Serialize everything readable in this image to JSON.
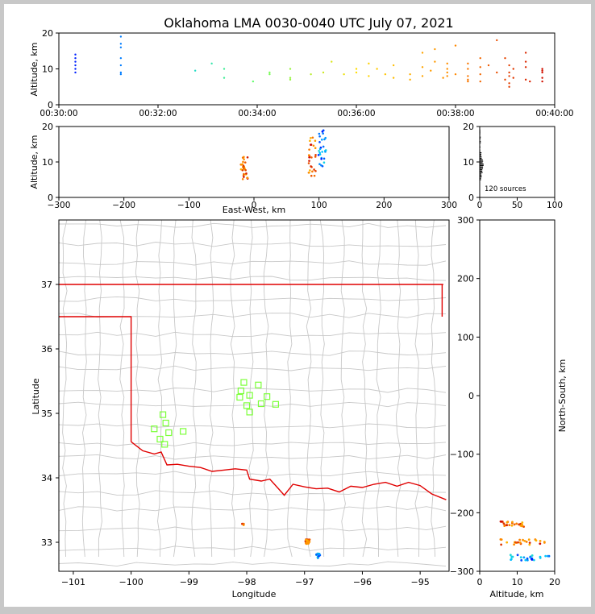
{
  "title": "Oklahoma LMA 0030-0040 UTC July 07, 2021",
  "colors": {
    "frame": "#c8c8c8",
    "background": "#ffffff",
    "county_lines": "#c8c8c8",
    "state_border": "#e00000",
    "stations": "#7cff3a",
    "colormap": [
      "#0000ff",
      "#00c8ff",
      "#66ff66",
      "#ffdd00",
      "#ff8800",
      "#cc0000"
    ]
  },
  "chart_data": [
    {
      "id": "time_altitude",
      "type": "scatter",
      "xlabel": "",
      "ylabel": "Altitude, km",
      "xlim": [
        "00:30:00",
        "00:40:00"
      ],
      "ylim": [
        0,
        20
      ],
      "xticks": [
        "00:30:00",
        "00:32:00",
        "00:34:00",
        "00:36:00",
        "00:38:00",
        "00:40:00"
      ],
      "yticks": [
        0,
        10,
        20
      ],
      "color_by": "time",
      "points": [
        [
          "00:30:20",
          9.0
        ],
        [
          "00:30:20",
          10.0
        ],
        [
          "00:30:20",
          11.0
        ],
        [
          "00:30:20",
          12.0
        ],
        [
          "00:30:20",
          13.0
        ],
        [
          "00:30:20",
          14.0
        ],
        [
          "00:31:15",
          8.5
        ],
        [
          "00:31:15",
          9.0
        ],
        [
          "00:31:15",
          11.0
        ],
        [
          "00:31:15",
          13.0
        ],
        [
          "00:31:15",
          16.0
        ],
        [
          "00:31:15",
          17.0
        ],
        [
          "00:31:15",
          19.0
        ],
        [
          "00:32:45",
          9.5
        ],
        [
          "00:33:05",
          11.5
        ],
        [
          "00:33:20",
          7.5
        ],
        [
          "00:33:20",
          10.0
        ],
        [
          "00:33:55",
          6.5
        ],
        [
          "00:34:15",
          8.5
        ],
        [
          "00:34:15",
          9.0
        ],
        [
          "00:34:40",
          7.0
        ],
        [
          "00:34:40",
          7.5
        ],
        [
          "00:34:40",
          10.0
        ],
        [
          "00:35:05",
          8.5
        ],
        [
          "00:35:20",
          9.0
        ],
        [
          "00:35:30",
          12.0
        ],
        [
          "00:35:45",
          8.5
        ],
        [
          "00:36:00",
          9.0
        ],
        [
          "00:36:00",
          10.0
        ],
        [
          "00:36:15",
          8.0
        ],
        [
          "00:36:15",
          11.5
        ],
        [
          "00:36:25",
          10.0
        ],
        [
          "00:36:35",
          8.5
        ],
        [
          "00:36:45",
          7.5
        ],
        [
          "00:36:45",
          11.0
        ],
        [
          "00:37:05",
          7.0
        ],
        [
          "00:37:05",
          8.5
        ],
        [
          "00:37:20",
          8.0
        ],
        [
          "00:37:20",
          10.5
        ],
        [
          "00:37:20",
          14.5
        ],
        [
          "00:37:30",
          9.5
        ],
        [
          "00:37:35",
          15.5
        ],
        [
          "00:37:35",
          12.0
        ],
        [
          "00:37:45",
          7.5
        ],
        [
          "00:37:50",
          8.0
        ],
        [
          "00:37:50",
          9.0
        ],
        [
          "00:37:50",
          10.0
        ],
        [
          "00:37:50",
          11.5
        ],
        [
          "00:38:00",
          8.5
        ],
        [
          "00:38:00",
          16.5
        ],
        [
          "00:38:15",
          6.5
        ],
        [
          "00:38:15",
          7.0
        ],
        [
          "00:38:15",
          8.0
        ],
        [
          "00:38:15",
          10.0
        ],
        [
          "00:38:15",
          11.5
        ],
        [
          "00:38:30",
          6.5
        ],
        [
          "00:38:30",
          8.5
        ],
        [
          "00:38:30",
          10.5
        ],
        [
          "00:38:30",
          13.0
        ],
        [
          "00:38:40",
          11.0
        ],
        [
          "00:38:50",
          9.0
        ],
        [
          "00:38:50",
          18.0
        ],
        [
          "00:39:00",
          7.0
        ],
        [
          "00:39:00",
          13.0
        ],
        [
          "00:39:05",
          6.0
        ],
        [
          "00:39:05",
          8.0
        ],
        [
          "00:39:05",
          9.0
        ],
        [
          "00:39:05",
          11.0
        ],
        [
          "00:39:05",
          5.0
        ],
        [
          "00:39:10",
          7.5
        ],
        [
          "00:39:10",
          10.0
        ],
        [
          "00:39:25",
          7.0
        ],
        [
          "00:39:25",
          10.5
        ],
        [
          "00:39:25",
          12.0
        ],
        [
          "00:39:25",
          14.5
        ],
        [
          "00:39:30",
          6.5
        ],
        [
          "00:39:45",
          6.5
        ],
        [
          "00:39:45",
          7.5
        ],
        [
          "00:39:45",
          9.0
        ],
        [
          "00:39:45",
          9.5
        ],
        [
          "00:39:45",
          10.0
        ]
      ]
    },
    {
      "id": "ew_altitude",
      "type": "scatter",
      "xlabel": "East-West, km",
      "ylabel": "Altitude, km",
      "xlim": [
        -300,
        300
      ],
      "ylim": [
        0,
        20
      ],
      "xticks": [
        -300,
        -200,
        -100,
        0,
        100,
        200,
        300
      ],
      "yticks": [
        0,
        10,
        20
      ],
      "columns": [
        {
          "x": -15,
          "ymin": 5,
          "ymax": 11.5,
          "range": "late"
        },
        {
          "x": 90,
          "ymin": 6,
          "ymax": 18,
          "range": "late"
        },
        {
          "x": 105,
          "ymin": 8.5,
          "ymax": 19,
          "range": "early"
        }
      ]
    },
    {
      "id": "altitude_histogram",
      "type": "scatter",
      "xlim": [
        0,
        100
      ],
      "ylim": [
        0,
        20
      ],
      "xticks": [
        0,
        50,
        100
      ],
      "yticks": [
        0,
        10,
        20
      ],
      "label": "120 sources"
    },
    {
      "id": "plan_view",
      "type": "scatter",
      "xlabel": "Longitude",
      "ylabel": "Latitude",
      "xlim": [
        -101.25,
        -94.5
      ],
      "ylim": [
        32.55,
        38.0
      ],
      "xticks": [
        -101,
        -100,
        -99,
        -98,
        -97,
        -96,
        -95
      ],
      "yticks": [
        33,
        34,
        35,
        36,
        37
      ],
      "stations": [
        [
          -98.05,
          35.48
        ],
        [
          -97.8,
          35.44
        ],
        [
          -98.1,
          35.35
        ],
        [
          -97.95,
          35.28
        ],
        [
          -98.12,
          35.25
        ],
        [
          -97.65,
          35.26
        ],
        [
          -98.0,
          35.12
        ],
        [
          -97.75,
          35.15
        ],
        [
          -97.5,
          35.14
        ],
        [
          -97.95,
          35.02
        ],
        [
          -99.45,
          34.98
        ],
        [
          -99.4,
          34.85
        ],
        [
          -99.6,
          34.76
        ],
        [
          -99.35,
          34.7
        ],
        [
          -99.1,
          34.72
        ],
        [
          -99.5,
          34.6
        ],
        [
          -99.42,
          34.52
        ]
      ],
      "clusters": [
        {
          "lon": -98.08,
          "lat": 33.3,
          "n": 3,
          "range": "late"
        },
        {
          "lon": -96.95,
          "lat": 33.01,
          "n": 22,
          "range": "late"
        },
        {
          "lon": -96.77,
          "lat": 32.79,
          "n": 12,
          "range": "early"
        }
      ]
    },
    {
      "id": "ns_altitude",
      "type": "scatter",
      "xlabel": "Altitude, km",
      "ylabel": "North-South, km",
      "xlim": [
        0,
        20
      ],
      "ylim": [
        -300,
        300
      ],
      "xticks": [
        0,
        10,
        20
      ],
      "yticks": [
        -300,
        -200,
        -100,
        0,
        100,
        200,
        300
      ],
      "rows": [
        {
          "y": -220,
          "xmin": 5,
          "xmax": 12,
          "range": "late"
        },
        {
          "y": -250,
          "xmin": 5,
          "xmax": 17.5,
          "range": "late"
        },
        {
          "y": -277,
          "xmin": 8,
          "xmax": 19,
          "range": "early"
        }
      ]
    }
  ]
}
